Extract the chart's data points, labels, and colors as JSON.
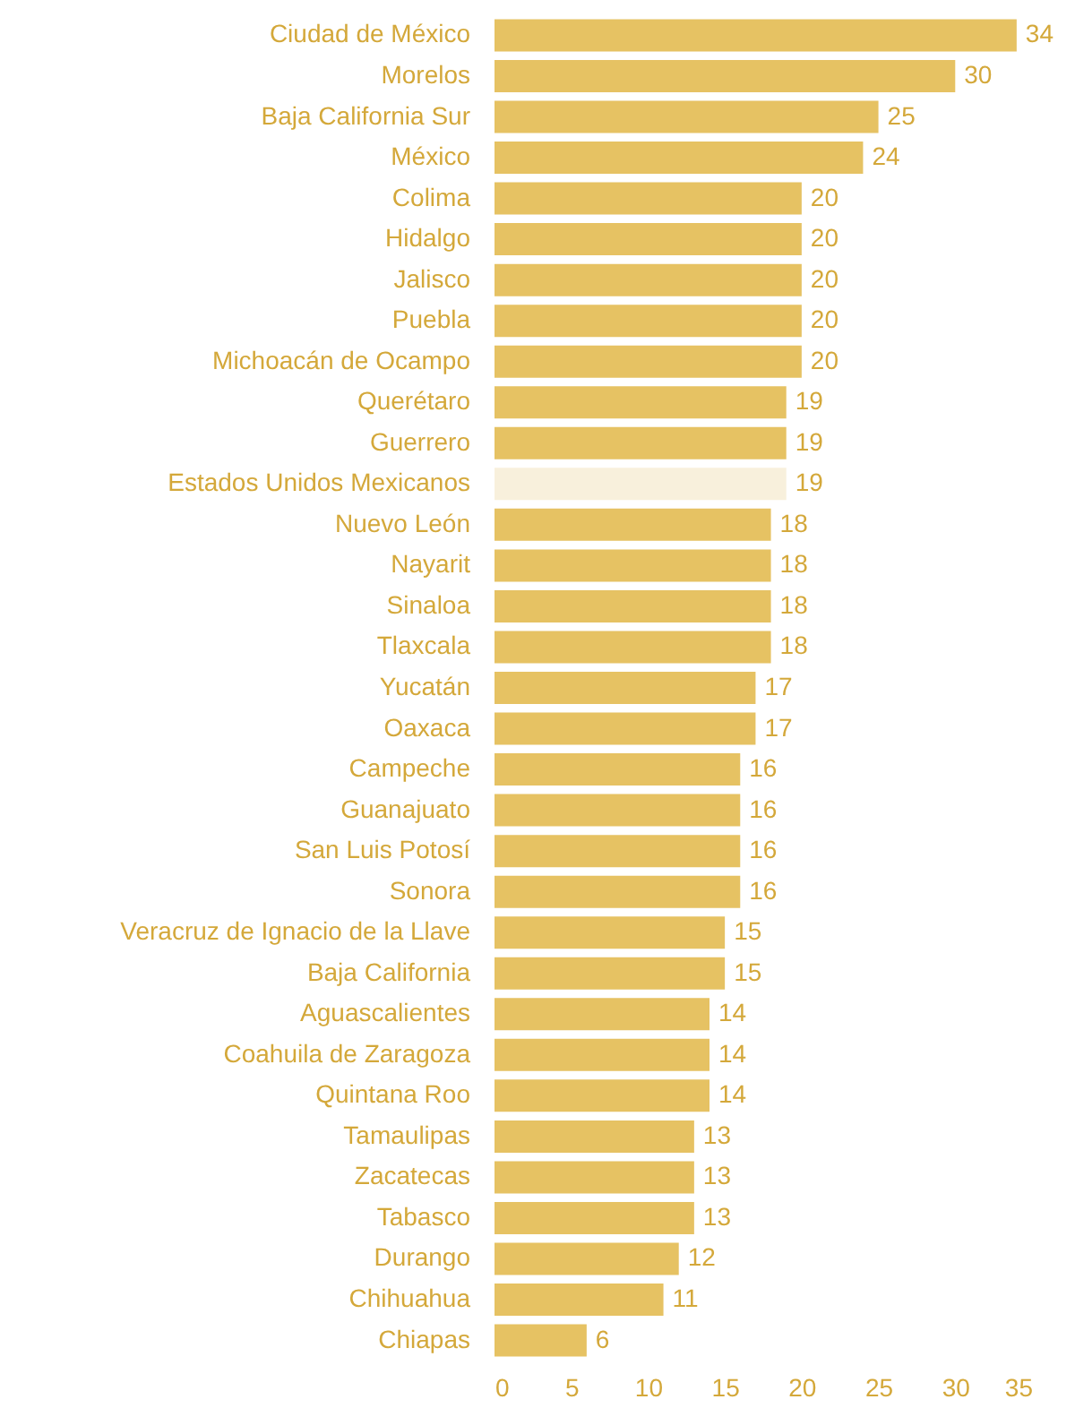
{
  "chart_data": {
    "type": "bar",
    "orientation": "horizontal",
    "data_labels": true,
    "grid": false,
    "categories": [
      "Ciudad de México",
      "Morelos",
      "Baja California Sur",
      "México",
      "Colima",
      "Hidalgo",
      "Jalisco",
      "Puebla",
      "Michoacán de Ocampo",
      "Querétaro",
      "Guerrero",
      "Estados Unidos Mexicanos",
      "Nuevo León",
      "Nayarit",
      "Sinaloa",
      "Tlaxcala",
      "Yucatán",
      "Oaxaca",
      "Campeche",
      "Guanajuato",
      "San Luis Potosí",
      "Sonora",
      "Veracruz de Ignacio de la Llave",
      "Baja California",
      "Aguascalientes",
      "Coahuila de Zaragoza",
      "Quintana Roo",
      "Tamaulipas",
      "Zacatecas",
      "Tabasco",
      "Durango",
      "Chihuahua",
      "Chiapas"
    ],
    "values": [
      34,
      30,
      25,
      24,
      20,
      20,
      20,
      20,
      20,
      19,
      19,
      19,
      18,
      18,
      18,
      18,
      17,
      17,
      16,
      16,
      16,
      16,
      15,
      15,
      14,
      14,
      14,
      13,
      13,
      13,
      12,
      11,
      6
    ],
    "colors": [
      "#e6c263",
      "#e6c263",
      "#e6c263",
      "#e6c263",
      "#e6c263",
      "#e6c263",
      "#e6c263",
      "#e6c263",
      "#e6c263",
      "#e6c263",
      "#e6c263",
      "#f8f0dc",
      "#e6c263",
      "#e6c263",
      "#e6c263",
      "#e6c263",
      "#e6c263",
      "#e6c263",
      "#e6c263",
      "#e6c263",
      "#e6c263",
      "#e6c263",
      "#e6c263",
      "#e6c263",
      "#e6c263",
      "#e6c263",
      "#e6c263",
      "#e6c263",
      "#e6c263",
      "#e6c263",
      "#e6c263",
      "#e6c263",
      "#e6c263"
    ],
    "xlim": [
      0,
      35
    ],
    "xticks": [
      0,
      5,
      10,
      15,
      20,
      25,
      30,
      35
    ]
  }
}
